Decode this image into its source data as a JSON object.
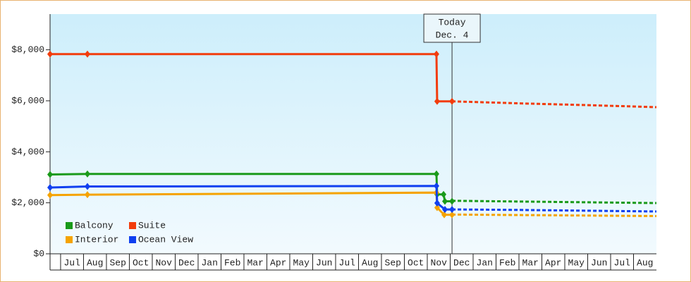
{
  "chart_data": {
    "type": "line",
    "xlim": [
      -0.46,
      26
    ],
    "ylim": [
      0,
      9400
    ],
    "xticks": [
      {
        "value": 0,
        "label": "Jul"
      },
      {
        "value": 1,
        "label": "Aug"
      },
      {
        "value": 2,
        "label": "Sep"
      },
      {
        "value": 3,
        "label": "Oct"
      },
      {
        "value": 4,
        "label": "Nov"
      },
      {
        "value": 5,
        "label": "Dec"
      },
      {
        "value": 6,
        "label": "Jan"
      },
      {
        "value": 7,
        "label": "Feb"
      },
      {
        "value": 8,
        "label": "Mar"
      },
      {
        "value": 9,
        "label": "Apr"
      },
      {
        "value": 10,
        "label": "May"
      },
      {
        "value": 11,
        "label": "Jun"
      },
      {
        "value": 12,
        "label": "Jul"
      },
      {
        "value": 13,
        "label": "Aug"
      },
      {
        "value": 14,
        "label": "Sep"
      },
      {
        "value": 15,
        "label": "Oct"
      },
      {
        "value": 16,
        "label": "Nov"
      },
      {
        "value": 17,
        "label": "Dec"
      },
      {
        "value": 18,
        "label": "Jan"
      },
      {
        "value": 19,
        "label": "Feb"
      },
      {
        "value": 20,
        "label": "Mar"
      },
      {
        "value": 21,
        "label": "Apr"
      },
      {
        "value": 22,
        "label": "May"
      },
      {
        "value": 23,
        "label": "Jun"
      },
      {
        "value": 24,
        "label": "Jul"
      },
      {
        "value": 25,
        "label": "Aug"
      }
    ],
    "yticks": [
      {
        "value": 0,
        "label": "$0"
      },
      {
        "value": 2000,
        "label": "$2,000"
      },
      {
        "value": 4000,
        "label": "$4,000"
      },
      {
        "value": 6000,
        "label": "$6,000"
      },
      {
        "value": 8000,
        "label": "$8,000"
      }
    ],
    "legend": "lower left",
    "annotation": {
      "x": 17.08,
      "lines": [
        "Today",
        "Dec. 4"
      ]
    },
    "series": [
      {
        "name": "Balcony",
        "color": "#1a9a1a",
        "x": [
          -0.46,
          1.17,
          16.4,
          16.43,
          16.71,
          16.77,
          17.08
        ],
        "values": [
          3110,
          3130,
          3130,
          2330,
          2330,
          2060,
          2060
        ],
        "forecast_x": [
          17.08,
          20,
          23,
          26
        ],
        "forecast": [
          2080,
          2050,
          2020,
          1990
        ]
      },
      {
        "name": "Suite",
        "color": "#f23c0c",
        "x": [
          -0.46,
          1.17,
          16.4,
          16.43,
          17.08
        ],
        "values": [
          7830,
          7830,
          7830,
          5980,
          5980
        ],
        "forecast_x": [
          17.08,
          20,
          23,
          26
        ],
        "forecast": [
          5980,
          5900,
          5830,
          5750
        ]
      },
      {
        "name": "Interior",
        "color": "#f5a300",
        "x": [
          -0.46,
          1.17,
          16.4,
          16.43,
          16.74,
          17.08
        ],
        "values": [
          2300,
          2320,
          2400,
          1810,
          1530,
          1530
        ],
        "forecast_x": [
          17.08,
          20,
          23,
          26
        ],
        "forecast": [
          1540,
          1520,
          1500,
          1480
        ]
      },
      {
        "name": "Ocean View",
        "color": "#1040f0",
        "x": [
          -0.46,
          1.17,
          16.4,
          16.43,
          16.77,
          17.08
        ],
        "values": [
          2600,
          2640,
          2660,
          1990,
          1740,
          1740
        ],
        "forecast_x": [
          17.08,
          20,
          23,
          26
        ],
        "forecast": [
          1740,
          1720,
          1690,
          1660
        ]
      }
    ]
  }
}
